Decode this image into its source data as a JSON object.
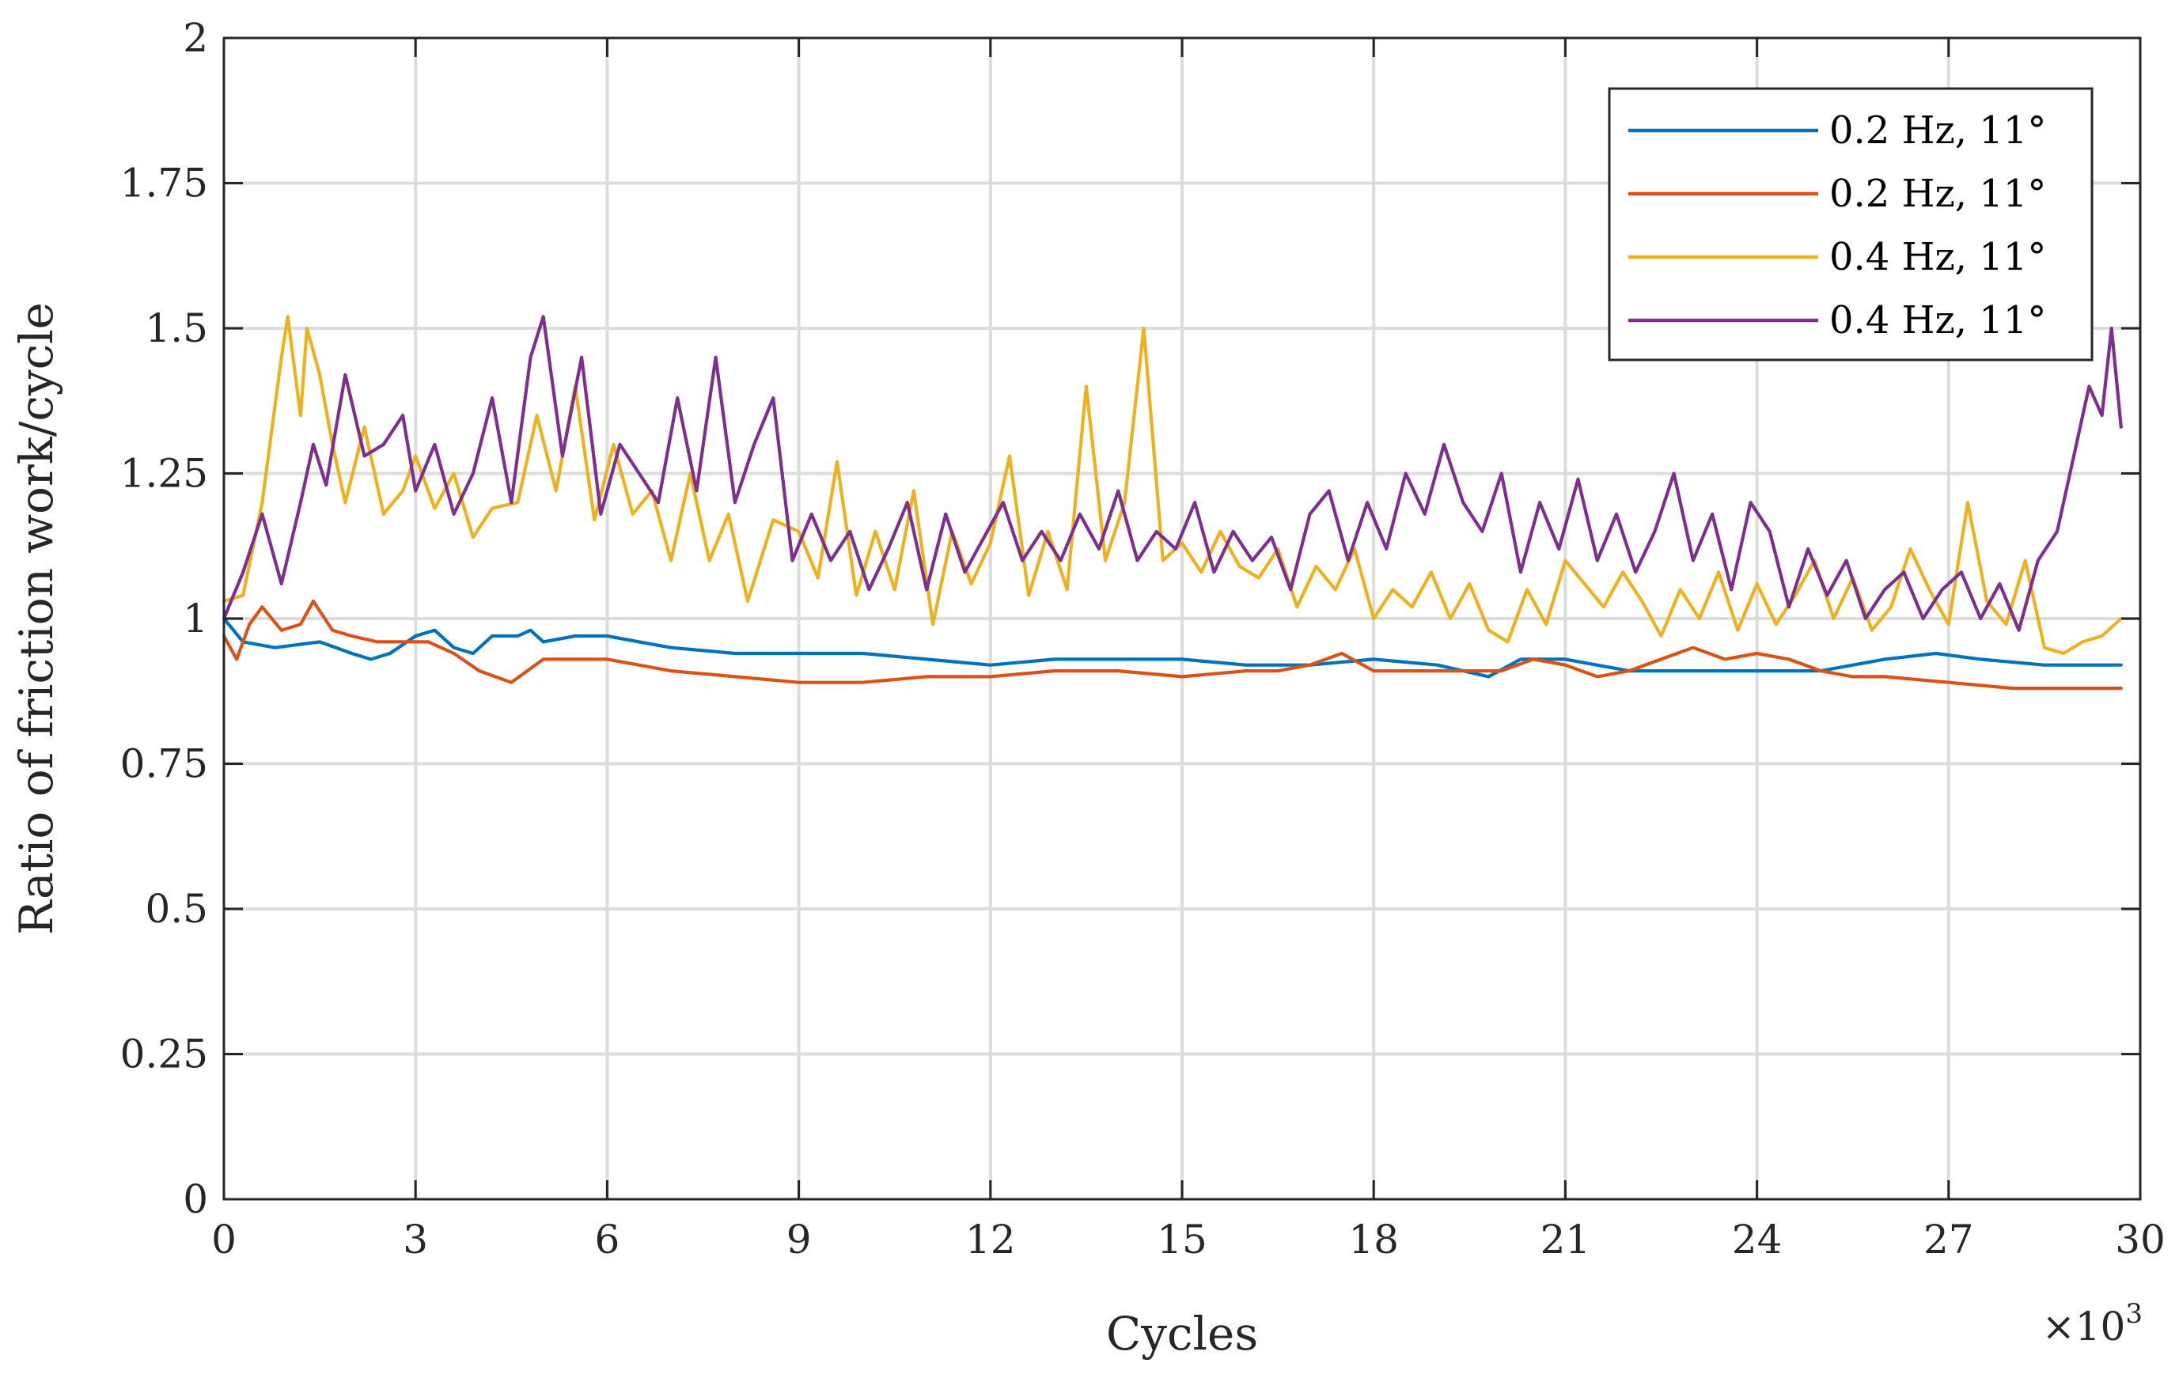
{
  "chart_data": {
    "type": "line",
    "title": "",
    "xlabel": "Cycles",
    "ylabel": "Ratio of friction work/cycle",
    "x_multiplier_label": "×10",
    "x_multiplier_exponent": "3",
    "xlim": [
      0,
      30
    ],
    "ylim": [
      0,
      2
    ],
    "x_ticks": [
      0,
      3,
      6,
      9,
      12,
      15,
      18,
      21,
      24,
      27,
      30
    ],
    "x_tick_labels": [
      "0",
      "3",
      "6",
      "9",
      "12",
      "15",
      "18",
      "21",
      "24",
      "27",
      "30"
    ],
    "y_ticks": [
      0,
      0.25,
      0.5,
      0.75,
      1,
      1.25,
      1.5,
      1.75,
      2
    ],
    "y_tick_labels": [
      "0",
      "0.25",
      "0.5",
      "0.75",
      "1",
      "1.25",
      "1.5",
      "1.75",
      "2"
    ],
    "grid": true,
    "legend_position": "top-right",
    "x_units_note": "x values in thousands of cycles",
    "series": [
      {
        "name": "0.2 Hz, 11°",
        "color": "#0072BD",
        "x": [
          0,
          0.3,
          0.8,
          1.5,
          2.0,
          2.3,
          2.6,
          3.0,
          3.3,
          3.6,
          3.9,
          4.2,
          4.6,
          4.8,
          5.0,
          5.5,
          6.0,
          6.5,
          7.0,
          8.0,
          9.0,
          10.0,
          11.0,
          12.0,
          13.0,
          14.0,
          15.0,
          16.0,
          17.0,
          18.0,
          19.0,
          19.8,
          20.3,
          21.0,
          22.0,
          23.0,
          24.0,
          25.0,
          26.0,
          26.8,
          27.5,
          28.5,
          29.7
        ],
        "y": [
          1.0,
          0.96,
          0.95,
          0.96,
          0.94,
          0.93,
          0.94,
          0.97,
          0.98,
          0.95,
          0.94,
          0.97,
          0.97,
          0.98,
          0.96,
          0.97,
          0.97,
          0.96,
          0.95,
          0.94,
          0.94,
          0.94,
          0.93,
          0.92,
          0.93,
          0.93,
          0.93,
          0.92,
          0.92,
          0.93,
          0.92,
          0.9,
          0.93,
          0.93,
          0.91,
          0.91,
          0.91,
          0.91,
          0.93,
          0.94,
          0.93,
          0.92,
          0.92
        ]
      },
      {
        "name": "0.2 Hz, 11°",
        "color": "#D95319",
        "x": [
          0,
          0.2,
          0.4,
          0.6,
          0.9,
          1.2,
          1.4,
          1.7,
          2.0,
          2.4,
          2.8,
          3.2,
          3.6,
          4.0,
          4.5,
          5.0,
          5.5,
          6.0,
          7.0,
          8.0,
          9.0,
          10.0,
          11.0,
          12.0,
          13.0,
          14.0,
          15.0,
          16.0,
          16.5,
          17.0,
          17.5,
          18.0,
          19.0,
          20.0,
          20.5,
          21.0,
          21.5,
          22.0,
          22.5,
          23.0,
          23.5,
          24.0,
          24.5,
          25.0,
          25.5,
          26.0,
          27.0,
          28.0,
          29.0,
          29.7
        ],
        "y": [
          0.97,
          0.93,
          0.99,
          1.02,
          0.98,
          0.99,
          1.03,
          0.98,
          0.97,
          0.96,
          0.96,
          0.96,
          0.94,
          0.91,
          0.89,
          0.93,
          0.93,
          0.93,
          0.91,
          0.9,
          0.89,
          0.89,
          0.9,
          0.9,
          0.91,
          0.91,
          0.9,
          0.91,
          0.91,
          0.92,
          0.94,
          0.91,
          0.91,
          0.91,
          0.93,
          0.92,
          0.9,
          0.91,
          0.93,
          0.95,
          0.93,
          0.94,
          0.93,
          0.91,
          0.9,
          0.9,
          0.89,
          0.88,
          0.88,
          0.88
        ]
      },
      {
        "name": "0.4 Hz, 11°",
        "color": "#EDB120",
        "x": [
          0,
          0.3,
          0.6,
          0.9,
          1.0,
          1.2,
          1.3,
          1.5,
          1.7,
          1.9,
          2.2,
          2.5,
          2.8,
          3.0,
          3.3,
          3.6,
          3.9,
          4.2,
          4.6,
          4.9,
          5.2,
          5.5,
          5.8,
          6.1,
          6.4,
          6.7,
          7.0,
          7.3,
          7.6,
          7.9,
          8.2,
          8.6,
          9.0,
          9.3,
          9.6,
          9.9,
          10.2,
          10.5,
          10.8,
          11.1,
          11.4,
          11.7,
          12.0,
          12.3,
          12.6,
          12.9,
          13.2,
          13.5,
          13.8,
          14.1,
          14.4,
          14.7,
          15.0,
          15.3,
          15.6,
          15.9,
          16.2,
          16.5,
          16.8,
          17.1,
          17.4,
          17.7,
          18.0,
          18.3,
          18.6,
          18.9,
          19.2,
          19.5,
          19.8,
          20.1,
          20.4,
          20.7,
          21.0,
          21.3,
          21.6,
          21.9,
          22.2,
          22.5,
          22.8,
          23.1,
          23.4,
          23.7,
          24.0,
          24.3,
          24.6,
          24.9,
          25.2,
          25.5,
          25.8,
          26.1,
          26.4,
          26.7,
          27.0,
          27.3,
          27.6,
          27.9,
          28.2,
          28.5,
          28.8,
          29.1,
          29.4,
          29.7
        ],
        "y": [
          1.03,
          1.04,
          1.2,
          1.45,
          1.52,
          1.35,
          1.5,
          1.42,
          1.3,
          1.2,
          1.33,
          1.18,
          1.22,
          1.28,
          1.19,
          1.25,
          1.14,
          1.19,
          1.2,
          1.35,
          1.22,
          1.4,
          1.17,
          1.3,
          1.18,
          1.22,
          1.1,
          1.25,
          1.1,
          1.18,
          1.03,
          1.17,
          1.15,
          1.07,
          1.27,
          1.04,
          1.15,
          1.05,
          1.22,
          0.99,
          1.15,
          1.06,
          1.13,
          1.28,
          1.04,
          1.15,
          1.05,
          1.4,
          1.1,
          1.2,
          1.5,
          1.1,
          1.13,
          1.08,
          1.15,
          1.09,
          1.07,
          1.12,
          1.02,
          1.09,
          1.05,
          1.12,
          1.0,
          1.05,
          1.02,
          1.08,
          1.0,
          1.06,
          0.98,
          0.96,
          1.05,
          0.99,
          1.1,
          1.06,
          1.02,
          1.08,
          1.03,
          0.97,
          1.05,
          1.0,
          1.08,
          0.98,
          1.06,
          0.99,
          1.04,
          1.1,
          1.0,
          1.07,
          0.98,
          1.02,
          1.12,
          1.05,
          0.99,
          1.2,
          1.03,
          0.99,
          1.1,
          0.95,
          0.94,
          0.96,
          0.97,
          1.0
        ]
      },
      {
        "name": "0.4 Hz, 11°",
        "color": "#7E2F8E",
        "x": [
          0,
          0.3,
          0.6,
          0.9,
          1.2,
          1.4,
          1.6,
          1.9,
          2.2,
          2.5,
          2.8,
          3.0,
          3.3,
          3.6,
          3.9,
          4.2,
          4.5,
          4.8,
          5.0,
          5.3,
          5.6,
          5.9,
          6.2,
          6.5,
          6.8,
          7.1,
          7.4,
          7.7,
          8.0,
          8.3,
          8.6,
          8.9,
          9.2,
          9.5,
          9.8,
          10.1,
          10.4,
          10.7,
          11.0,
          11.3,
          11.6,
          11.9,
          12.2,
          12.5,
          12.8,
          13.1,
          13.4,
          13.7,
          14.0,
          14.3,
          14.6,
          14.9,
          15.2,
          15.5,
          15.8,
          16.1,
          16.4,
          16.7,
          17.0,
          17.3,
          17.6,
          17.9,
          18.2,
          18.5,
          18.8,
          19.1,
          19.4,
          19.7,
          20.0,
          20.3,
          20.6,
          20.9,
          21.2,
          21.5,
          21.8,
          22.1,
          22.4,
          22.7,
          23.0,
          23.3,
          23.6,
          23.9,
          24.2,
          24.5,
          24.8,
          25.1,
          25.4,
          25.7,
          26.0,
          26.3,
          26.6,
          26.9,
          27.2,
          27.5,
          27.8,
          28.1,
          28.4,
          28.7,
          29.0,
          29.2,
          29.4,
          29.55,
          29.7
        ],
        "y": [
          1.0,
          1.08,
          1.18,
          1.06,
          1.2,
          1.3,
          1.23,
          1.42,
          1.28,
          1.3,
          1.35,
          1.22,
          1.3,
          1.18,
          1.25,
          1.38,
          1.2,
          1.45,
          1.52,
          1.28,
          1.45,
          1.18,
          1.3,
          1.25,
          1.2,
          1.38,
          1.22,
          1.45,
          1.2,
          1.3,
          1.38,
          1.1,
          1.18,
          1.1,
          1.15,
          1.05,
          1.12,
          1.2,
          1.05,
          1.18,
          1.08,
          1.14,
          1.2,
          1.1,
          1.15,
          1.1,
          1.18,
          1.12,
          1.22,
          1.1,
          1.15,
          1.12,
          1.2,
          1.08,
          1.15,
          1.1,
          1.14,
          1.05,
          1.18,
          1.22,
          1.1,
          1.2,
          1.12,
          1.25,
          1.18,
          1.3,
          1.2,
          1.15,
          1.25,
          1.08,
          1.2,
          1.12,
          1.24,
          1.1,
          1.18,
          1.08,
          1.15,
          1.25,
          1.1,
          1.18,
          1.05,
          1.2,
          1.15,
          1.02,
          1.12,
          1.04,
          1.1,
          1.0,
          1.05,
          1.08,
          1.0,
          1.05,
          1.08,
          1.0,
          1.06,
          0.98,
          1.1,
          1.15,
          1.3,
          1.4,
          1.35,
          1.5,
          1.33
        ]
      }
    ]
  }
}
